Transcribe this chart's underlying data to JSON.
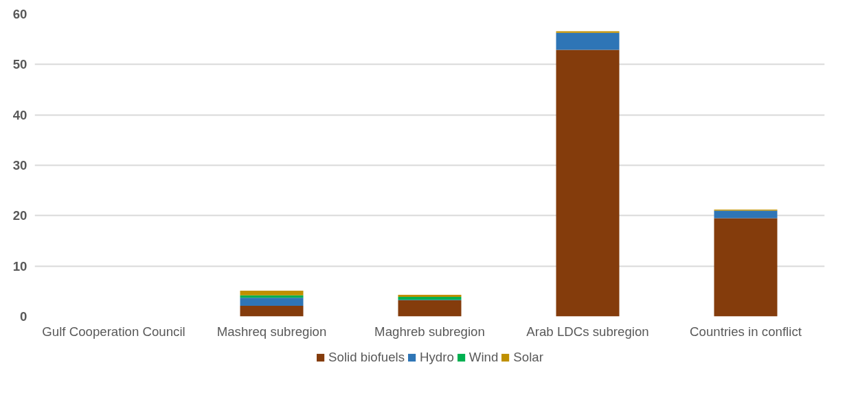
{
  "chart_data": {
    "type": "bar",
    "stacked": true,
    "categories": [
      "Gulf Cooperation Council",
      "Mashreq subregion",
      "Maghreb subregion",
      "Arab LDCs subregion",
      "Countries in conflict"
    ],
    "series": [
      {
        "name": "Solid biofuels",
        "color": "#843c0c",
        "values": [
          0,
          2.1,
          3.2,
          52.9,
          19.5
        ]
      },
      {
        "name": "Hydro",
        "color": "#2e75b6",
        "values": [
          0,
          1.6,
          0.1,
          3.4,
          1.5
        ]
      },
      {
        "name": "Wind",
        "color": "#00b050",
        "values": [
          0,
          0.5,
          0.6,
          0,
          0
        ]
      },
      {
        "name": "Solar",
        "color": "#bf9000",
        "values": [
          0,
          0.9,
          0.4,
          0.3,
          0.2
        ]
      }
    ],
    "ylim": [
      0,
      60
    ],
    "yticks": [
      0,
      10,
      20,
      30,
      40,
      50,
      60
    ],
    "grid": "y",
    "legend": "bottom"
  }
}
